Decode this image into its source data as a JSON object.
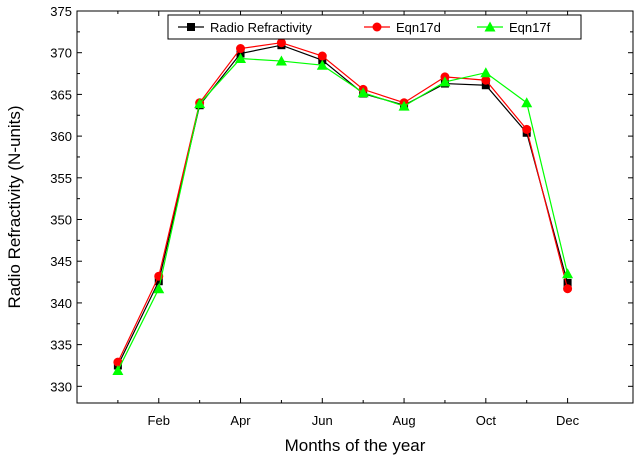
{
  "chart_data": {
    "type": "line",
    "xlabel": "Months of the year",
    "ylabel": "Radio Refractivity (N-units)",
    "x_ticks": [
      {
        "label": "Feb",
        "x": 2
      },
      {
        "label": "Apr",
        "x": 4
      },
      {
        "label": "Jun",
        "x": 6
      },
      {
        "label": "Aug",
        "x": 8
      },
      {
        "label": "Oct",
        "x": 10
      },
      {
        "label": "Dec",
        "x": 12
      }
    ],
    "xlim": [
      0.0,
      13.6
    ],
    "ylim": [
      328,
      375
    ],
    "y_ticks": [
      330,
      335,
      340,
      345,
      350,
      355,
      360,
      365,
      370,
      375
    ],
    "x": [
      1,
      2,
      3,
      4,
      5,
      6,
      7,
      8,
      9,
      10,
      11,
      12
    ],
    "grid": false,
    "legend_position": "top-center",
    "series": [
      {
        "name": "Radio Refractivity",
        "color": "#000000",
        "marker": "square",
        "values": [
          332.5,
          342.6,
          363.7,
          369.9,
          370.9,
          369.1,
          365.1,
          363.7,
          366.3,
          366.1,
          360.4,
          342.4
        ]
      },
      {
        "name": "Eqn17d",
        "color": "#ff0000",
        "marker": "circle",
        "values": [
          332.9,
          343.2,
          364.0,
          370.5,
          371.2,
          369.6,
          365.6,
          364.0,
          367.1,
          366.7,
          360.8,
          341.7
        ]
      },
      {
        "name": "Eqn17f",
        "color": "#00ff00",
        "marker": "triangle",
        "values": [
          331.9,
          341.7,
          363.9,
          369.3,
          369.0,
          368.5,
          365.2,
          363.6,
          366.5,
          367.6,
          364.0,
          343.5
        ]
      }
    ]
  }
}
